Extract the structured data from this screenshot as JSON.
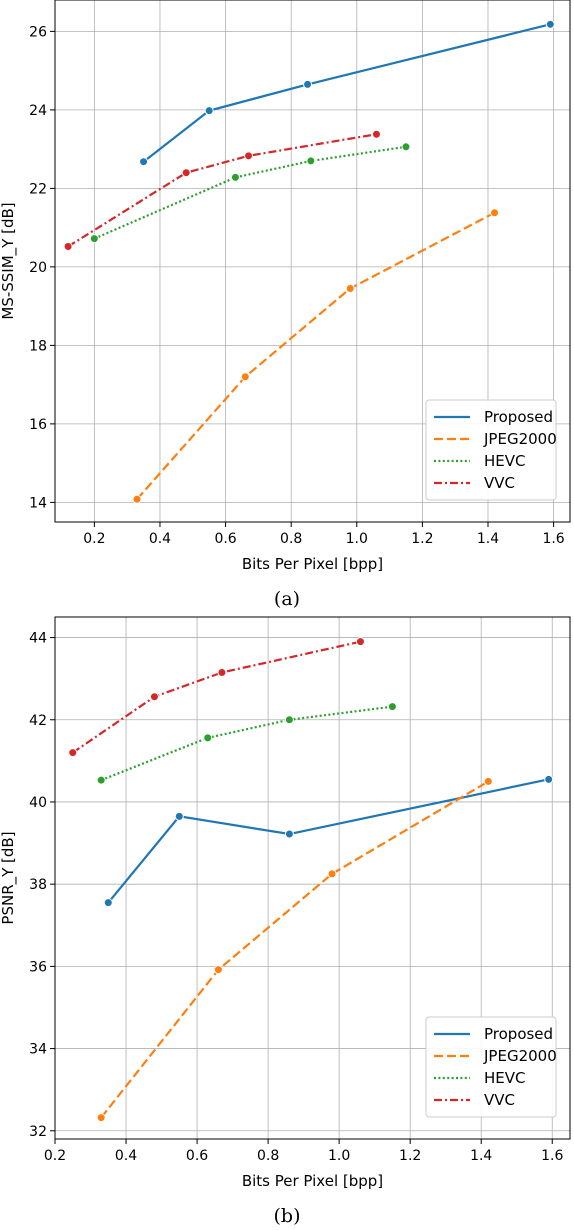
{
  "colors": {
    "Proposed": "#1f77b4",
    "JPEG2000": "#ff7f0e",
    "HEVC": "#2ca02c",
    "VVC": "#d62728"
  },
  "chart_data": [
    {
      "type": "line",
      "caption": "(a)",
      "xlabel": "Bits Per Pixel [bpp]",
      "ylabel": "MS-SSIM_Y [dB]",
      "xlim": [
        0.08,
        1.65
      ],
      "ylim": [
        13.5,
        26.8
      ],
      "xticks": [
        0.2,
        0.4,
        0.6,
        0.8,
        1.0,
        1.2,
        1.4,
        1.6
      ],
      "xtick_labels": [
        "0.2",
        "0.4",
        "0.6",
        "0.8",
        "1.0",
        "1.2",
        "1.4",
        "1.6"
      ],
      "yticks": [
        14,
        16,
        18,
        20,
        22,
        24,
        26
      ],
      "ytick_labels": [
        "14",
        "16",
        "18",
        "20",
        "22",
        "24",
        "26"
      ],
      "grid": true,
      "legend_position": "lower-right",
      "series": [
        {
          "name": "Proposed",
          "style": "solid",
          "x": [
            0.35,
            0.55,
            0.85,
            1.59
          ],
          "y": [
            22.68,
            23.98,
            24.65,
            26.18
          ]
        },
        {
          "name": "JPEG2000",
          "style": "dashed",
          "x": [
            0.33,
            0.66,
            0.98,
            1.42
          ],
          "y": [
            14.08,
            17.2,
            19.45,
            21.38
          ]
        },
        {
          "name": "HEVC",
          "style": "dotted",
          "x": [
            0.2,
            0.63,
            0.86,
            1.15
          ],
          "y": [
            20.72,
            22.28,
            22.7,
            23.06
          ]
        },
        {
          "name": "VVC",
          "style": "dashdot",
          "x": [
            0.12,
            0.48,
            0.67,
            1.06
          ],
          "y": [
            20.52,
            22.4,
            22.83,
            23.38
          ]
        }
      ]
    },
    {
      "type": "line",
      "caption": "(b)",
      "xlabel": "Bits Per Pixel [bpp]",
      "ylabel": "PSNR_Y [dB]",
      "xlim": [
        0.2,
        1.65
      ],
      "ylim": [
        31.8,
        44.5
      ],
      "xticks": [
        0.2,
        0.4,
        0.6,
        0.8,
        1.0,
        1.2,
        1.4,
        1.6
      ],
      "xtick_labels": [
        "0.2",
        "0.4",
        "0.6",
        "0.8",
        "1.0",
        "1.2",
        "1.4",
        "1.6"
      ],
      "yticks": [
        32,
        34,
        36,
        38,
        40,
        42,
        44
      ],
      "ytick_labels": [
        "32",
        "34",
        "36",
        "38",
        "40",
        "42",
        "44"
      ],
      "grid": true,
      "legend_position": "lower-right",
      "series": [
        {
          "name": "Proposed",
          "style": "solid",
          "x": [
            0.35,
            0.55,
            0.86,
            1.59
          ],
          "y": [
            37.55,
            39.65,
            39.22,
            40.55
          ]
        },
        {
          "name": "JPEG2000",
          "style": "dashed",
          "x": [
            0.33,
            0.66,
            0.98,
            1.42
          ],
          "y": [
            32.32,
            35.92,
            38.25,
            40.5
          ]
        },
        {
          "name": "HEVC",
          "style": "dotted",
          "x": [
            0.33,
            0.63,
            0.86,
            1.15
          ],
          "y": [
            40.53,
            41.56,
            42.0,
            42.32
          ]
        },
        {
          "name": "VVC",
          "style": "dashdot",
          "x": [
            0.25,
            0.48,
            0.67,
            1.06
          ],
          "y": [
            41.2,
            42.56,
            43.15,
            43.9
          ]
        }
      ]
    }
  ]
}
